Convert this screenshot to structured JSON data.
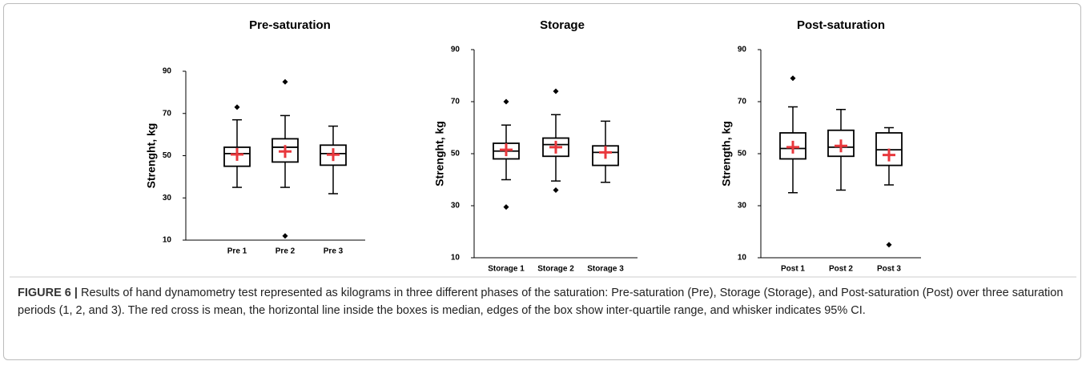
{
  "chart_data": [
    {
      "type": "box",
      "title": "Pre-saturation",
      "ylabel": "Strenght, kg",
      "categories": [
        "Pre 1",
        "Pre 2",
        "Pre 3"
      ],
      "whisker_low": [
        35,
        35,
        32
      ],
      "q1": [
        45,
        47,
        45.5
      ],
      "median": [
        51,
        54,
        51
      ],
      "q3": [
        54,
        58,
        55
      ],
      "whisker_high": [
        67,
        69,
        64
      ],
      "mean": [
        50.6,
        52,
        50.5
      ],
      "outliers": [
        [
          73
        ],
        [
          85,
          12
        ],
        []
      ],
      "ylim": [
        10,
        90
      ],
      "yticks": [
        10,
        30,
        50,
        70,
        90
      ],
      "color": "#000000",
      "mean_color": "#e8383d"
    },
    {
      "type": "box",
      "title": "Storage",
      "ylabel": "Strenght, kg",
      "categories": [
        "Storage 1",
        "Storage 2",
        "Storage 3"
      ],
      "whisker_low": [
        40,
        39.5,
        39
      ],
      "q1": [
        48,
        49,
        45.5
      ],
      "median": [
        51,
        53.5,
        50.5
      ],
      "q3": [
        54,
        56,
        53
      ],
      "whisker_high": [
        61,
        65,
        62.5
      ],
      "mean": [
        51.5,
        52.5,
        50.5
      ],
      "outliers": [
        [
          70,
          29.5
        ],
        [
          74,
          36
        ],
        []
      ],
      "ylim": [
        10,
        90
      ],
      "yticks": [
        10,
        30,
        50,
        70,
        90
      ],
      "color": "#000000",
      "mean_color": "#e8383d"
    },
    {
      "type": "box",
      "title": "Post-saturation",
      "ylabel": "Strength, kg",
      "categories": [
        "Post 1",
        "Post 2",
        "Post 3"
      ],
      "whisker_low": [
        35,
        36,
        38
      ],
      "q1": [
        48,
        49,
        45.5
      ],
      "median": [
        52,
        52.5,
        51.5
      ],
      "q3": [
        58,
        59,
        58
      ],
      "whisker_high": [
        68,
        67,
        60
      ],
      "mean": [
        52.5,
        53,
        49.5
      ],
      "outliers": [
        [
          79
        ],
        [],
        [
          15
        ]
      ],
      "ylim": [
        10,
        90
      ],
      "yticks": [
        10,
        30,
        50,
        70,
        90
      ],
      "color": "#000000",
      "mean_color": "#e8383d"
    }
  ],
  "caption": {
    "label": "FIGURE 6 |",
    "text": "Results of hand dynamometry test represented as kilograms in three different phases of the saturation: Pre-saturation (Pre), Storage (Storage), and Post-saturation (Post) over three saturation periods (1, 2, and 3). The red cross is mean, the horizontal line inside the boxes is median, edges of the box show inter-quartile range, and whisker indicates 95% CI."
  }
}
